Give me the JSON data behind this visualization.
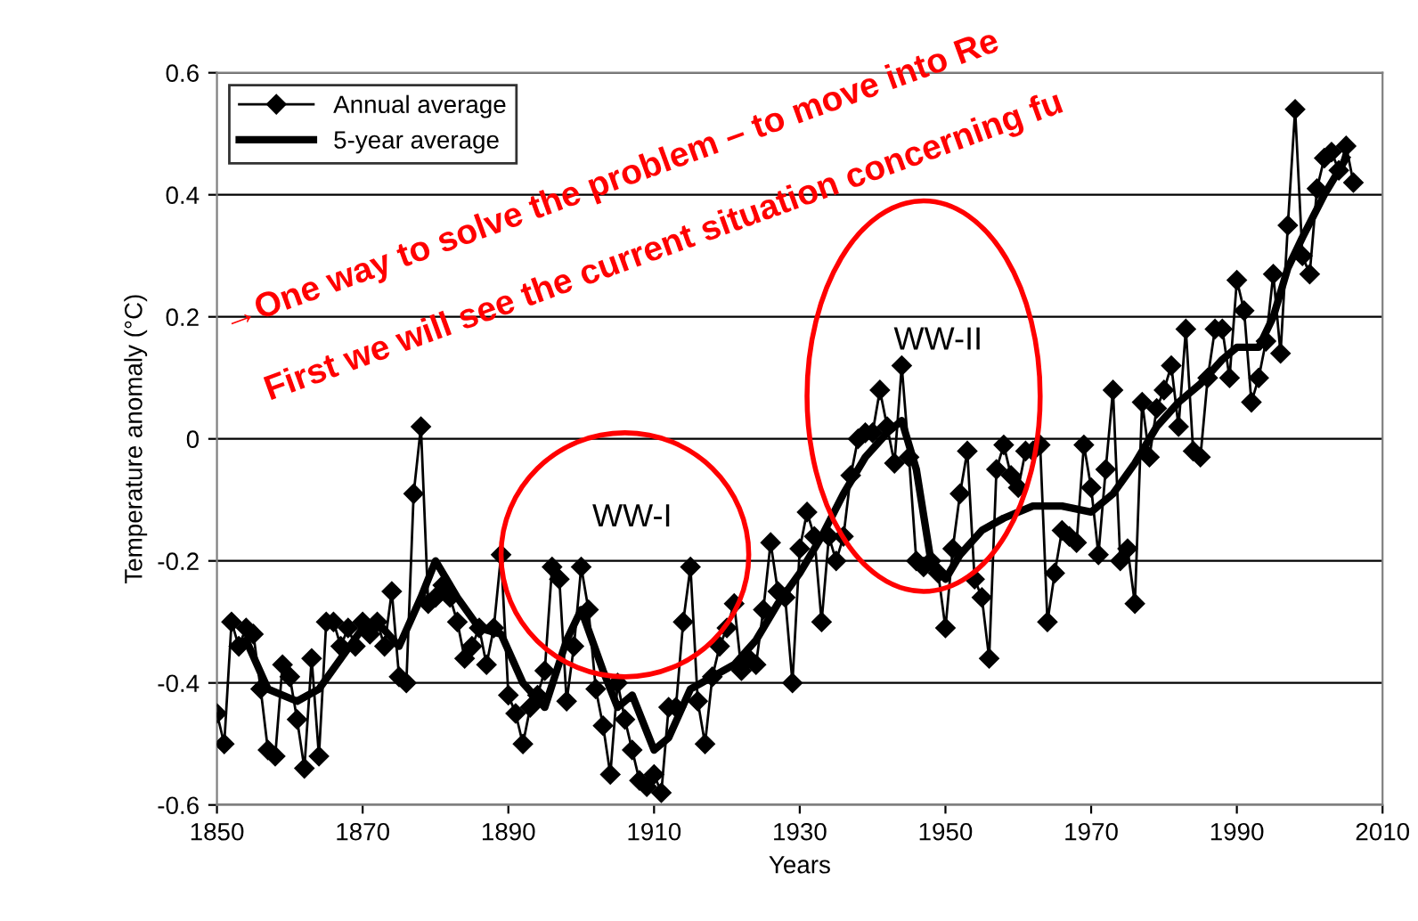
{
  "chart_data": {
    "type": "line",
    "xlabel": "Years",
    "ylabel": "Temperature anomaly (°C)",
    "xlim": [
      1850,
      2010
    ],
    "xticks": [
      1850,
      1870,
      1890,
      1910,
      1930,
      1950,
      1970,
      1990,
      2010
    ],
    "ylim": [
      -0.6,
      0.6
    ],
    "yticks": [
      -0.6,
      -0.4,
      -0.2,
      0,
      0.2,
      0.4,
      0.6
    ],
    "grid": "y",
    "legend": "top left",
    "series": [
      {
        "name": "Annual average",
        "color": "#000000",
        "marker": "diamond",
        "x": [
          1850,
          1851,
          1852,
          1853,
          1854,
          1855,
          1856,
          1857,
          1858,
          1859,
          1860,
          1861,
          1862,
          1863,
          1864,
          1865,
          1866,
          1867,
          1868,
          1869,
          1870,
          1871,
          1872,
          1873,
          1874,
          1875,
          1876,
          1877,
          1878,
          1879,
          1880,
          1881,
          1882,
          1883,
          1884,
          1885,
          1886,
          1887,
          1888,
          1889,
          1890,
          1891,
          1892,
          1893,
          1894,
          1895,
          1896,
          1897,
          1898,
          1899,
          1900,
          1901,
          1902,
          1903,
          1904,
          1905,
          1906,
          1907,
          1908,
          1909,
          1910,
          1911,
          1912,
          1913,
          1914,
          1915,
          1916,
          1917,
          1918,
          1919,
          1920,
          1921,
          1922,
          1923,
          1924,
          1925,
          1926,
          1927,
          1928,
          1929,
          1930,
          1931,
          1932,
          1933,
          1934,
          1935,
          1936,
          1937,
          1938,
          1939,
          1940,
          1941,
          1942,
          1943,
          1944,
          1945,
          1946,
          1947,
          1948,
          1949,
          1950,
          1951,
          1952,
          1953,
          1954,
          1955,
          1956,
          1957,
          1958,
          1959,
          1960,
          1961,
          1962,
          1963,
          1964,
          1965,
          1966,
          1967,
          1968,
          1969,
          1970,
          1971,
          1972,
          1973,
          1974,
          1975,
          1976,
          1977,
          1978,
          1979,
          1980,
          1981,
          1982,
          1983,
          1984,
          1985,
          1986,
          1987,
          1988,
          1989,
          1990,
          1991,
          1992,
          1993,
          1994,
          1995,
          1996,
          1997,
          1998,
          1999,
          2000,
          2001,
          2002,
          2003,
          2004,
          2005,
          2006
        ],
        "values": [
          -0.45,
          -0.5,
          -0.3,
          -0.34,
          -0.31,
          -0.32,
          -0.41,
          -0.51,
          -0.52,
          -0.37,
          -0.39,
          -0.46,
          -0.54,
          -0.36,
          -0.52,
          -0.3,
          -0.3,
          -0.34,
          -0.31,
          -0.34,
          -0.3,
          -0.32,
          -0.3,
          -0.34,
          -0.25,
          -0.39,
          -0.4,
          -0.09,
          0.02,
          -0.27,
          -0.26,
          -0.24,
          -0.26,
          -0.3,
          -0.36,
          -0.34,
          -0.31,
          -0.37,
          -0.31,
          -0.19,
          -0.42,
          -0.45,
          -0.5,
          -0.44,
          -0.42,
          -0.38,
          -0.21,
          -0.23,
          -0.43,
          -0.34,
          -0.21,
          -0.28,
          -0.41,
          -0.47,
          -0.55,
          -0.4,
          -0.46,
          -0.51,
          -0.56,
          -0.57,
          -0.55,
          -0.58,
          -0.44,
          -0.44,
          -0.3,
          -0.21,
          -0.43,
          -0.5,
          -0.39,
          -0.34,
          -0.31,
          -0.27,
          -0.38,
          -0.36,
          -0.37,
          -0.28,
          -0.17,
          -0.25,
          -0.26,
          -0.4,
          -0.18,
          -0.12,
          -0.16,
          -0.3,
          -0.16,
          -0.2,
          -0.16,
          -0.06,
          0.0,
          0.01,
          0.01,
          0.08,
          0.02,
          -0.04,
          0.12,
          -0.03,
          -0.2,
          -0.21,
          -0.2,
          -0.22,
          -0.31,
          -0.18,
          -0.09,
          -0.02,
          -0.23,
          -0.26,
          -0.36,
          -0.05,
          -0.01,
          -0.06,
          -0.08,
          -0.02,
          -0.02,
          -0.01,
          -0.3,
          -0.22,
          -0.15,
          -0.16,
          -0.17,
          -0.01,
          -0.08,
          -0.19,
          -0.05,
          0.08,
          -0.2,
          -0.18,
          -0.27,
          0.06,
          -0.03,
          0.05,
          0.08,
          0.12,
          0.02,
          0.18,
          -0.02,
          -0.03,
          0.1,
          0.18,
          0.18,
          0.1,
          0.26,
          0.21,
          0.06,
          0.1,
          0.16,
          0.27,
          0.14,
          0.35,
          0.54,
          0.3,
          0.27,
          0.41,
          0.46,
          0.47,
          0.44,
          0.48,
          0.42
        ]
      },
      {
        "name": "5-year average",
        "color": "#000000",
        "marker": "none",
        "x": [
          1854,
          1857,
          1861,
          1864,
          1867,
          1870,
          1872,
          1875,
          1878,
          1880,
          1883,
          1886,
          1889,
          1892,
          1895,
          1898,
          1900,
          1903,
          1905,
          1907,
          1910,
          1912,
          1915,
          1918,
          1921,
          1924,
          1927,
          1930,
          1933,
          1936,
          1939,
          1942,
          1944,
          1946,
          1948,
          1950,
          1952,
          1955,
          1958,
          1962,
          1966,
          1970,
          1973,
          1976,
          1979,
          1982,
          1985,
          1988,
          1990,
          1993,
          1995,
          1997,
          1999,
          2002,
          2005
        ],
        "values": [
          -0.33,
          -0.41,
          -0.43,
          -0.41,
          -0.36,
          -0.31,
          -0.3,
          -0.34,
          -0.26,
          -0.2,
          -0.26,
          -0.31,
          -0.32,
          -0.4,
          -0.44,
          -0.33,
          -0.28,
          -0.38,
          -0.44,
          -0.42,
          -0.51,
          -0.49,
          -0.41,
          -0.39,
          -0.37,
          -0.33,
          -0.27,
          -0.22,
          -0.16,
          -0.09,
          -0.03,
          0.01,
          0.03,
          -0.05,
          -0.2,
          -0.23,
          -0.19,
          -0.15,
          -0.13,
          -0.11,
          -0.11,
          -0.12,
          -0.09,
          -0.04,
          0.02,
          0.06,
          0.09,
          0.13,
          0.15,
          0.15,
          0.2,
          0.28,
          0.33,
          0.4,
          0.46
        ]
      }
    ],
    "annotations": [
      "WW-I",
      "WW-II",
      "→One way to solve the problem – to move into Re",
      "First we will see the current situation concerning fu"
    ]
  }
}
